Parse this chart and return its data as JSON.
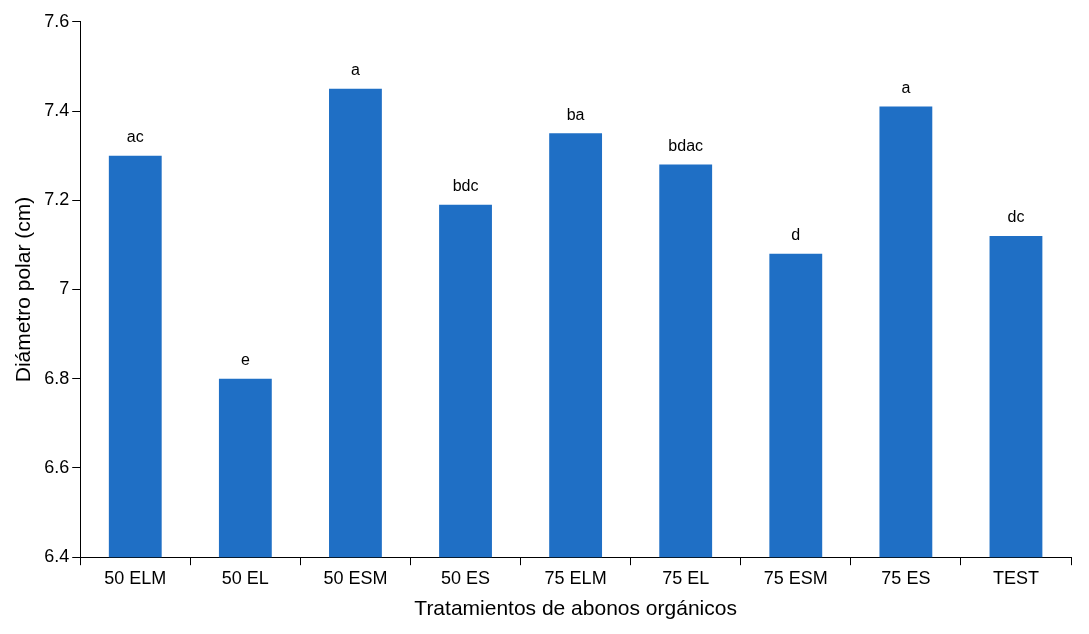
{
  "chart_data": {
    "type": "bar",
    "xlabel": "Tratamientos de abonos orgánicos",
    "ylabel": "Diámetro polar (cm)",
    "categories": [
      "50 ELM",
      "50 EL",
      "50 ESM",
      "50 ES",
      "75 ELM",
      "75 EL",
      "75 ESM",
      "75 ES",
      "TEST"
    ],
    "values": [
      7.3,
      6.8,
      7.45,
      7.19,
      7.35,
      7.28,
      7.08,
      7.41,
      7.12
    ],
    "color": "#1f6fc5",
    "ylim": [
      6.4,
      7.6
    ],
    "yticks": [
      {
        "value": 6.4,
        "label": "6.4"
      },
      {
        "value": 6.6,
        "label": "6.6"
      },
      {
        "value": 6.8,
        "label": "6.8"
      },
      {
        "value": 7,
        "label": "7"
      },
      {
        "value": 7.2,
        "label": "7.2"
      },
      {
        "value": 7.4,
        "label": "7.4"
      },
      {
        "value": 7.6,
        "label": "7.6"
      }
    ],
    "grid": false,
    "legend": false,
    "annotations": [
      {
        "text": "ac",
        "x": "50 ELM",
        "y": 7.3
      },
      {
        "text": "e",
        "x": "50 EL",
        "y": 6.8
      },
      {
        "text": "a",
        "x": "50 ESM",
        "y": 7.45
      },
      {
        "text": "bdc",
        "x": "50 ES",
        "y": 7.19
      },
      {
        "text": "ba",
        "x": "75 ELM",
        "y": 7.35
      },
      {
        "text": "bdac",
        "x": "75 EL",
        "y": 7.28
      },
      {
        "text": "d",
        "x": "75 ESM",
        "y": 7.08
      },
      {
        "text": "a",
        "x": "75 ES",
        "y": 7.41
      },
      {
        "text": "dc",
        "x": "TEST",
        "y": 7.12
      }
    ]
  }
}
